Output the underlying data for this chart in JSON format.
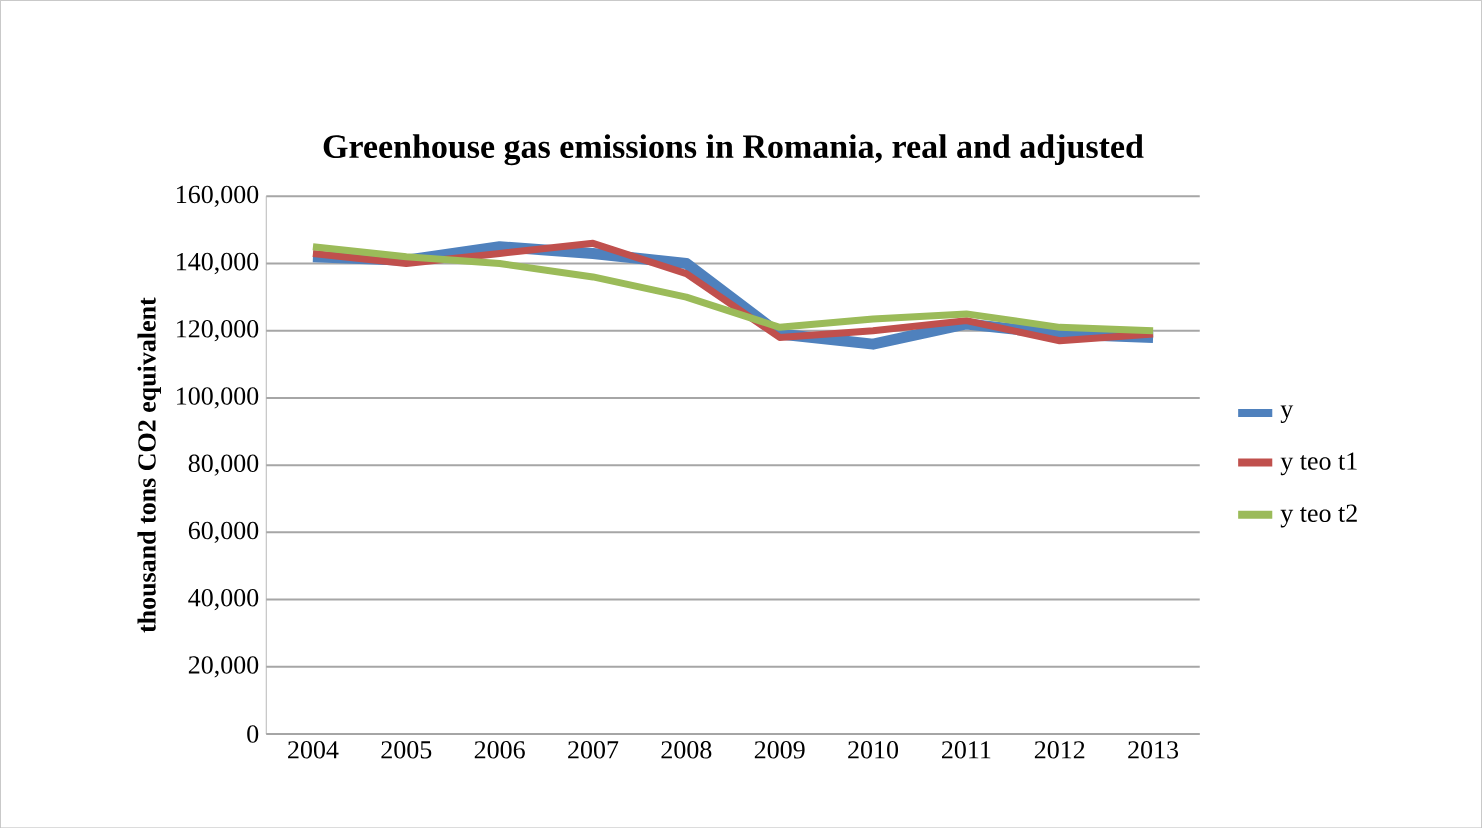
{
  "chart_data": {
    "type": "line",
    "title": "Greenhouse gas emissions in Romania, real and adjusted",
    "ylabel": "thousand tons CO2 equivalent",
    "categories": [
      "2004",
      "2005",
      "2006",
      "2007",
      "2008",
      "2009",
      "2010",
      "2011",
      "2012",
      "2013"
    ],
    "series": [
      {
        "name": "y",
        "color": "#4f81bd",
        "values": [
          142000,
          141000,
          145000,
          143000,
          140000,
          119000,
          116000,
          122000,
          119000,
          118000
        ]
      },
      {
        "name": "y teo t1",
        "color": "#c0504d",
        "values": [
          143000,
          140000,
          143000,
          146000,
          137000,
          118000,
          120000,
          123000,
          117000,
          119000
        ]
      },
      {
        "name": "y teo t2",
        "color": "#9bbb59",
        "values": [
          145000,
          142000,
          140000,
          136000,
          130000,
          121000,
          123500,
          125000,
          121000,
          120000
        ]
      }
    ],
    "ylim": [
      0,
      160000
    ],
    "yticks": [
      {
        "value": 0,
        "label": "0"
      },
      {
        "value": 20000,
        "label": "20,000"
      },
      {
        "value": 40000,
        "label": "40,000"
      },
      {
        "value": 60000,
        "label": "60,000"
      },
      {
        "value": 80000,
        "label": "80,000"
      },
      {
        "value": 100000,
        "label": "100,000"
      },
      {
        "value": 120000,
        "label": "120,000"
      },
      {
        "value": 140000,
        "label": "140,000"
      },
      {
        "value": 160000,
        "label": "160,000"
      }
    ],
    "grid": "y",
    "legend": "right",
    "marker": "none",
    "line_style": "solid"
  }
}
